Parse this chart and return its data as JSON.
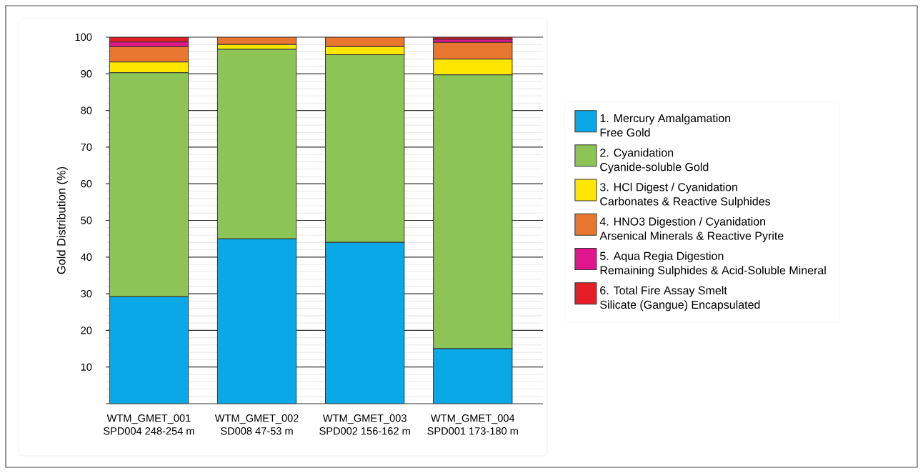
{
  "chart_data": {
    "type": "bar",
    "stacked": true,
    "ylabel": "Gold Distribution (%)",
    "categories": [
      "WTM_GMET_001\nSPD004 248-254 m",
      "WTM_GMET_002\nSD008 47-53 m",
      "WTM_GMET_003\nSPD002 156-162 m",
      "WTM_GMET_004\nSPD001 173-180 m"
    ],
    "series": [
      {
        "name": "1.  Mercury Amalgamation\nFree Gold",
        "color": "#0aa8e6",
        "values": [
          29.2,
          45.0,
          44.0,
          15.0
        ]
      },
      {
        "name": "2.  Cyanidation\nCyanide-soluble Gold",
        "color": "#8cc455",
        "values": [
          61.1,
          51.7,
          51.2,
          74.7
        ]
      },
      {
        "name": "3.  HCl Digest / Cyanidation\nCarbonates & Reactive Sulphides",
        "color": "#ffe600",
        "values": [
          2.9,
          1.3,
          2.2,
          4.3
        ]
      },
      {
        "name": "4.  HNO3 Digestion / Cyanidation\nArsenical Minerals & Reactive Pyrite",
        "color": "#e9762e",
        "values": [
          4.2,
          2.0,
          2.6,
          4.6
        ]
      },
      {
        "name": "5.  Aqua Regia Digestion\nRemaining Sulphides & Acid-Soluble Mineral",
        "color": "#e0168c",
        "values": [
          1.3,
          0,
          0,
          0.8
        ]
      },
      {
        "name": "6.  Total Fire Assay Smelt\nSilicate (Gangue) Encapsulated",
        "color": "#e31e26",
        "values": [
          1.3,
          0,
          0,
          0.6
        ]
      }
    ],
    "ylim": [
      0,
      100
    ],
    "yticks": [
      {
        "value": 0,
        "label": null
      },
      10,
      20,
      30,
      40,
      50,
      60,
      70,
      80,
      90,
      100
    ],
    "grid": "y",
    "legend": "right"
  }
}
